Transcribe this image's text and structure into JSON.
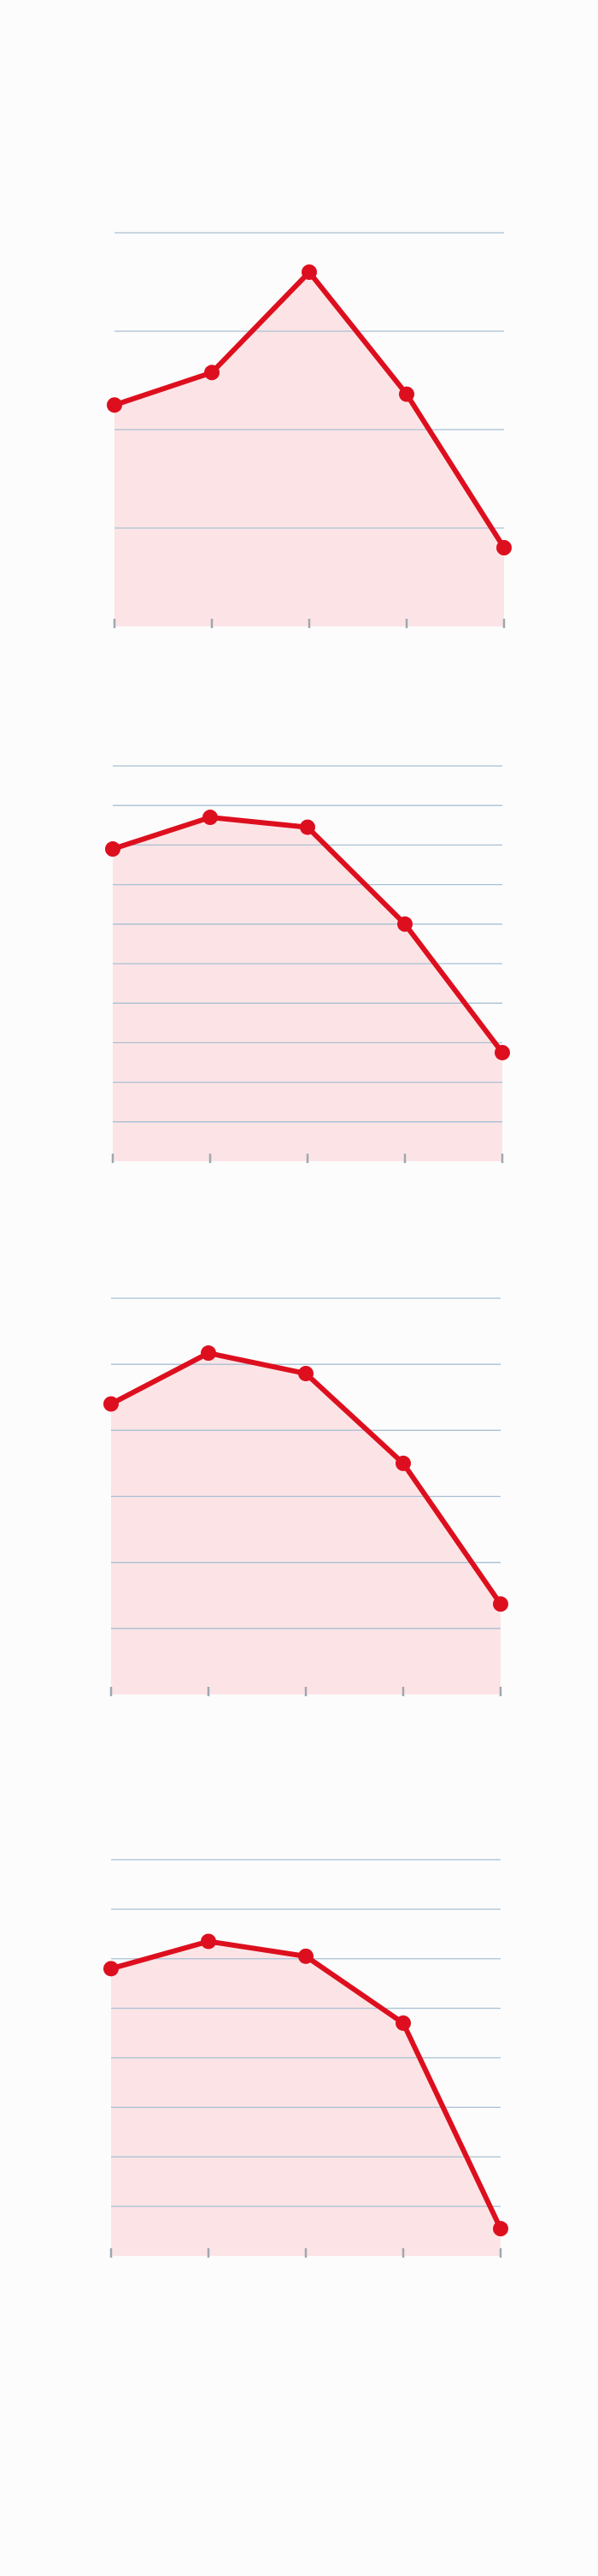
{
  "colors": {
    "background": "#fcfcfc",
    "line": "#dd0f1e",
    "area_fill": "#fce4e6",
    "grid": "#a9c0d3",
    "tick": "#9fa8b0"
  },
  "chart_data": [
    {
      "type": "area",
      "title": "",
      "xlabel": "",
      "ylabel": "",
      "grid": true,
      "legend": "none",
      "ylim": [
        0,
        4
      ],
      "x": [
        0,
        1,
        2,
        3,
        4
      ],
      "series": [
        {
          "values": [
            2.25,
            2.58,
            3.6,
            2.36,
            0.8
          ]
        }
      ]
    },
    {
      "type": "area",
      "title": "",
      "xlabel": "",
      "ylabel": "",
      "grid": true,
      "legend": "none",
      "ylim": [
        0,
        10
      ],
      "x": [
        0,
        1,
        2,
        3,
        4
      ],
      "series": [
        {
          "values": [
            7.9,
            8.7,
            8.45,
            6.0,
            2.75
          ]
        }
      ]
    },
    {
      "type": "area",
      "title": "",
      "xlabel": "",
      "ylabel": "",
      "grid": true,
      "legend": "none",
      "ylim": [
        0,
        6
      ],
      "x": [
        0,
        1,
        2,
        3,
        4
      ],
      "series": [
        {
          "values": [
            4.4,
            5.17,
            4.86,
            3.5,
            1.37
          ]
        }
      ]
    },
    {
      "type": "area",
      "title": "",
      "xlabel": "",
      "ylabel": "",
      "grid": true,
      "legend": "none",
      "ylim": [
        0,
        8
      ],
      "x": [
        0,
        1,
        2,
        3,
        4
      ],
      "series": [
        {
          "values": [
            5.8,
            6.35,
            6.05,
            4.7,
            0.55
          ]
        }
      ]
    }
  ]
}
